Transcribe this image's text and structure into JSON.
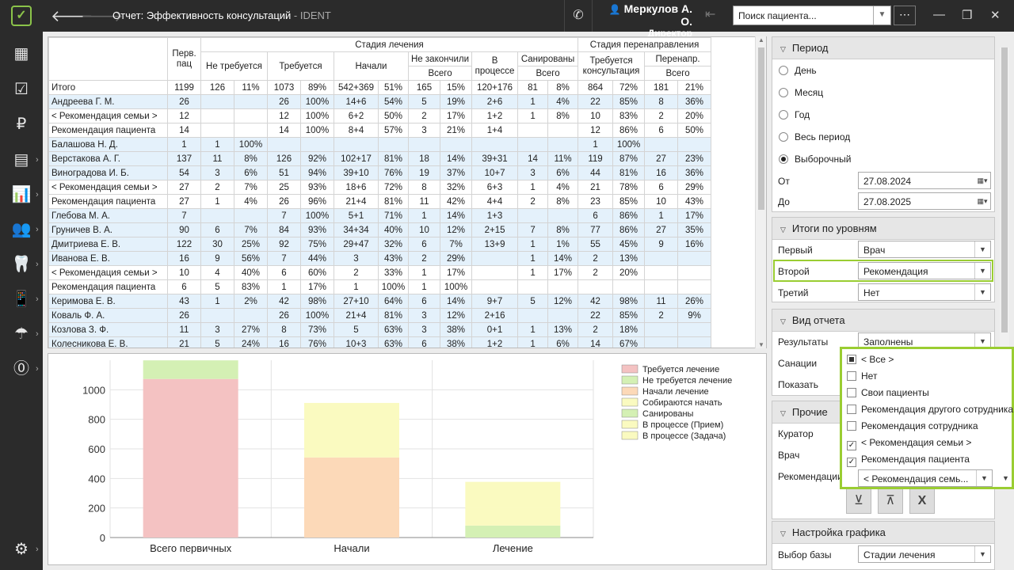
{
  "window": {
    "title": "Отчет: Эффективность консультаций",
    "app_name": "- IDENT"
  },
  "user": {
    "name": "Меркулов А. О.",
    "role": "Директор"
  },
  "search": {
    "placeholder": "Поиск пациента..."
  },
  "table": {
    "header_row1": {
      "first": "Перв.\nпац",
      "stage": "Стадия лечения",
      "redirect": "Стадия перенаправления"
    },
    "header_row2": [
      "Не требуется",
      "Требуется",
      "Начали",
      "Не закончили",
      "В процессе",
      "Санированы",
      "Требуется консультация",
      "Перенапр."
    ],
    "header_row3": {
      "not_finished_total": "Всего",
      "sanitized_total": "Всего",
      "redirect_total": "Всего"
    },
    "rows": [
      {
        "kind": "tot",
        "cells": [
          "Итого",
          "1199",
          "126",
          "11%",
          "1073",
          "89%",
          "542+369",
          "51%",
          "165",
          "15%",
          "120+176",
          "81",
          "8%",
          "864",
          "72%",
          "181",
          "21%"
        ]
      },
      {
        "kind": "doc",
        "cells": [
          "Андреева Г. М.",
          "26",
          "",
          "",
          "26",
          "100%",
          "14+6",
          "54%",
          "5",
          "19%",
          "2+6",
          "1",
          "4%",
          "22",
          "85%",
          "8",
          "36%"
        ]
      },
      {
        "kind": "sub",
        "cells": [
          "< Рекомендация семьи >",
          "12",
          "",
          "",
          "12",
          "100%",
          "6+2",
          "50%",
          "2",
          "17%",
          "1+2",
          "1",
          "8%",
          "10",
          "83%",
          "2",
          "20%"
        ]
      },
      {
        "kind": "sub",
        "cells": [
          "Рекомендация пациента",
          "14",
          "",
          "",
          "14",
          "100%",
          "8+4",
          "57%",
          "3",
          "21%",
          "1+4",
          "",
          "",
          "12",
          "86%",
          "6",
          "50%"
        ]
      },
      {
        "kind": "doc",
        "cells": [
          "Балашова Н. Д.",
          "1",
          "1",
          "100%",
          "",
          "",
          "",
          "",
          "",
          "",
          "",
          "",
          "",
          "1",
          "100%",
          "",
          ""
        ]
      },
      {
        "kind": "doc",
        "cells": [
          "Верстакова А. Г.",
          "137",
          "11",
          "8%",
          "126",
          "92%",
          "102+17",
          "81%",
          "18",
          "14%",
          "39+31",
          "14",
          "11%",
          "119",
          "87%",
          "27",
          "23%"
        ]
      },
      {
        "kind": "doc",
        "cells": [
          "Виноградова И. Б.",
          "54",
          "3",
          "6%",
          "51",
          "94%",
          "39+10",
          "76%",
          "19",
          "37%",
          "10+7",
          "3",
          "6%",
          "44",
          "81%",
          "16",
          "36%"
        ]
      },
      {
        "kind": "sub",
        "cells": [
          "< Рекомендация семьи >",
          "27",
          "2",
          "7%",
          "25",
          "93%",
          "18+6",
          "72%",
          "8",
          "32%",
          "6+3",
          "1",
          "4%",
          "21",
          "78%",
          "6",
          "29%"
        ]
      },
      {
        "kind": "sub",
        "cells": [
          "Рекомендация пациента",
          "27",
          "1",
          "4%",
          "26",
          "96%",
          "21+4",
          "81%",
          "11",
          "42%",
          "4+4",
          "2",
          "8%",
          "23",
          "85%",
          "10",
          "43%"
        ]
      },
      {
        "kind": "doc",
        "cells": [
          "Глебова М. А.",
          "7",
          "",
          "",
          "7",
          "100%",
          "5+1",
          "71%",
          "1",
          "14%",
          "1+3",
          "",
          "",
          "6",
          "86%",
          "1",
          "17%"
        ]
      },
      {
        "kind": "doc",
        "cells": [
          "Груничев В. А.",
          "90",
          "6",
          "7%",
          "84",
          "93%",
          "34+34",
          "40%",
          "10",
          "12%",
          "2+15",
          "7",
          "8%",
          "77",
          "86%",
          "27",
          "35%"
        ]
      },
      {
        "kind": "doc",
        "cells": [
          "Дмитриева Е. В.",
          "122",
          "30",
          "25%",
          "92",
          "75%",
          "29+47",
          "32%",
          "6",
          "7%",
          "13+9",
          "1",
          "1%",
          "55",
          "45%",
          "9",
          "16%"
        ]
      },
      {
        "kind": "doc",
        "cells": [
          "Иванова Е. В.",
          "16",
          "9",
          "56%",
          "7",
          "44%",
          "3",
          "43%",
          "2",
          "29%",
          "",
          "1",
          "14%",
          "2",
          "13%",
          "",
          ""
        ]
      },
      {
        "kind": "sub",
        "cells": [
          "< Рекомендация семьи >",
          "10",
          "4",
          "40%",
          "6",
          "60%",
          "2",
          "33%",
          "1",
          "17%",
          "",
          "1",
          "17%",
          "2",
          "20%",
          "",
          ""
        ]
      },
      {
        "kind": "sub",
        "cells": [
          "Рекомендация пациента",
          "6",
          "5",
          "83%",
          "1",
          "17%",
          "1",
          "100%",
          "1",
          "100%",
          "",
          "",
          "",
          "",
          "",
          "",
          ""
        ]
      },
      {
        "kind": "doc",
        "cells": [
          "Керимова Е. В.",
          "43",
          "1",
          "2%",
          "42",
          "98%",
          "27+10",
          "64%",
          "6",
          "14%",
          "9+7",
          "5",
          "12%",
          "42",
          "98%",
          "11",
          "26%"
        ]
      },
      {
        "kind": "doc",
        "cells": [
          "Коваль Ф. А.",
          "26",
          "",
          "",
          "26",
          "100%",
          "21+4",
          "81%",
          "3",
          "12%",
          "2+16",
          "",
          "",
          "22",
          "85%",
          "2",
          "9%"
        ]
      },
      {
        "kind": "doc",
        "cells": [
          "Козлова З. Ф.",
          "11",
          "3",
          "27%",
          "8",
          "73%",
          "5",
          "63%",
          "3",
          "38%",
          "0+1",
          "1",
          "13%",
          "2",
          "18%",
          "",
          ""
        ]
      },
      {
        "kind": "doc",
        "cells": [
          "Колесникова Е. В.",
          "21",
          "5",
          "24%",
          "16",
          "76%",
          "10+3",
          "63%",
          "6",
          "38%",
          "1+2",
          "1",
          "6%",
          "14",
          "67%",
          "",
          ""
        ]
      }
    ]
  },
  "chart_data": {
    "type": "bar",
    "stacked": true,
    "categories": [
      "Всего первичных",
      "Начали",
      "Лечение"
    ],
    "ylim": [
      0,
      1200
    ],
    "yticks": [
      0,
      200,
      400,
      600,
      800,
      1000
    ],
    "grid": true,
    "legend_position": "top-right",
    "series": [
      {
        "name": "Требуется лечение",
        "color": "#f4c2c2",
        "values": [
          1073,
          0,
          0
        ]
      },
      {
        "name": "Не требуется лечение",
        "color": "#d4f0b4",
        "values": [
          126,
          0,
          0
        ]
      },
      {
        "name": "Начали лечение",
        "color": "#fcd9b8",
        "values": [
          0,
          542,
          0
        ]
      },
      {
        "name": "Собираются начать",
        "color": "#fafac0",
        "values": [
          0,
          369,
          0
        ]
      },
      {
        "name": "Санированы",
        "color": "#d4f0b4",
        "values": [
          0,
          0,
          81
        ]
      },
      {
        "name": "В процессе (Прием)",
        "color": "#fafac0",
        "values": [
          0,
          0,
          120
        ]
      },
      {
        "name": "В процессе (Задача)",
        "color": "#fafac0",
        "values": [
          0,
          0,
          176
        ]
      }
    ]
  },
  "panel": {
    "period": {
      "title": "Период",
      "options": [
        "День",
        "Месяц",
        "Год",
        "Весь период",
        "Выборочный"
      ],
      "selected": "Выборочный",
      "from_label": "От",
      "from_value": "27.08.2024",
      "to_label": "До",
      "to_value": "27.08.2025"
    },
    "levels": {
      "title": "Итоги по уровням",
      "first_label": "Первый",
      "first_value": "Врач",
      "second_label": "Второй",
      "second_value": "Рекомендация",
      "third_label": "Третий",
      "third_value": "Нет"
    },
    "view": {
      "title": "Вид отчета",
      "results_label": "Результаты",
      "results_value": "Заполнены",
      "sanitation_label": "Санации",
      "show_label": "Показать"
    },
    "other": {
      "title": "Прочие",
      "curator_label": "Куратор",
      "doctor_label": "Врач",
      "recommendation_label": "Рекомендации"
    },
    "chart_settings": {
      "title": "Настройка графика",
      "base_label": "Выбор базы",
      "base_value": "Стадии лечения"
    }
  },
  "dropdown": {
    "items": [
      {
        "label": "< Все >",
        "state": "indeterminate"
      },
      {
        "label": "Нет",
        "state": "unchecked"
      },
      {
        "label": "Свои пациенты",
        "state": "unchecked"
      },
      {
        "label": "Рекомендация другого сотрудника",
        "state": "unchecked"
      },
      {
        "label": "Рекомендация сотрудника",
        "state": "unchecked"
      },
      {
        "label": "< Рекомендация семьи >",
        "state": "checked"
      },
      {
        "label": "Рекомендация пациента",
        "state": "checked"
      }
    ],
    "combo_value": "< Рекомендация семь..."
  }
}
